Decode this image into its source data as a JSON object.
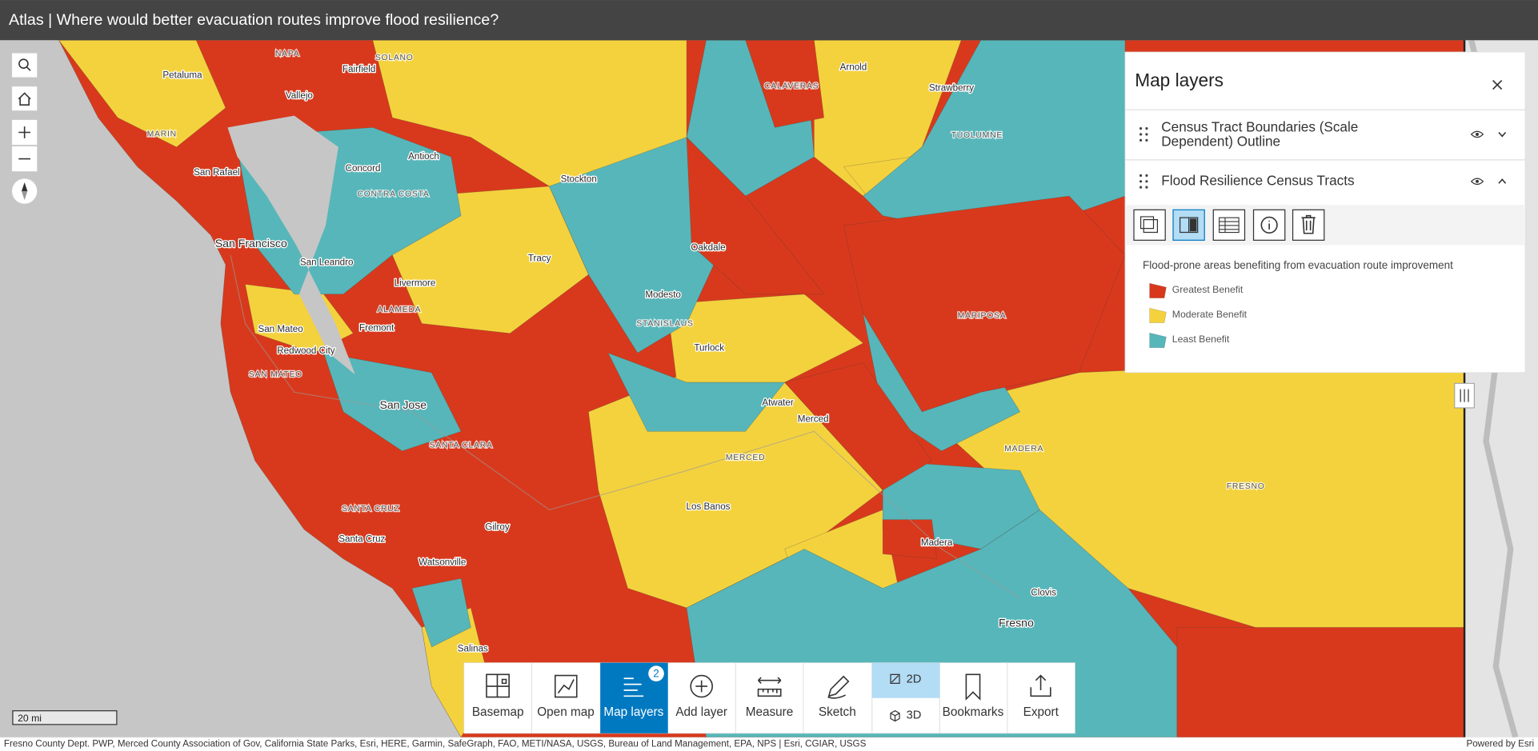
{
  "header": {
    "title": "Atlas | Where would better evacuation routes improve flood resilience?"
  },
  "map": {
    "labels": [
      "Petaluma",
      "NAPA",
      "Fairfield",
      "SOLANO",
      "MARIN",
      "Vallejo",
      "San Rafael",
      "Antioch",
      "Concord",
      "CONTRA COSTA",
      "Stockton",
      "San Francisco",
      "San Leandro",
      "Tracy",
      "Oakdale",
      "Livermore",
      "ALAMEDA",
      "Modesto",
      "STANISLAUS",
      "San Mateo",
      "Fremont",
      "Redwood City",
      "Turlock",
      "SAN MATEO",
      "San Jose",
      "Atwater",
      "Merced",
      "SANTA CLARA",
      "MERCED",
      "MADERA",
      "FRESNO",
      "SANTA CRUZ",
      "Gilroy",
      "Los Banos",
      "Santa Cruz",
      "Madera",
      "Watsonville",
      "Clovis",
      "Fresno",
      "Salinas",
      "Arnold",
      "CALAVERAS",
      "Strawberry",
      "TUOLUMNE",
      "MARIPOSA"
    ],
    "scale": "20 mi",
    "attribution": "Fresno County Dept. PWP, Merced County Association of Gov, California State Parks, Esri, HERE, Garmin, SafeGraph, FAO, METI/NASA, USGS, Bureau of Land Management, EPA, NPS | Esri, CGIAR, USGS",
    "powered_by": "Powered by Esri"
  },
  "layers_panel": {
    "title": "Map layers",
    "layers": [
      {
        "name": "Census Tract Boundaries (Scale Dependent) Outline"
      },
      {
        "name": "Flood Resilience Census Tracts"
      }
    ],
    "legend": {
      "title": "Flood-prone areas benefiting from evacuation route improvement",
      "items": [
        {
          "label": "Greatest Benefit",
          "color": "#d8391c"
        },
        {
          "label": "Moderate Benefit",
          "color": "#f4d23e"
        },
        {
          "label": "Least Benefit",
          "color": "#57b6b9"
        }
      ]
    }
  },
  "toolbar": {
    "items": [
      "Basemap",
      "Open map",
      "Map layers",
      "Add layer",
      "Measure",
      "Sketch",
      "Bookmarks",
      "Export"
    ],
    "view_modes": [
      "2D",
      "3D"
    ],
    "badge": 2
  }
}
